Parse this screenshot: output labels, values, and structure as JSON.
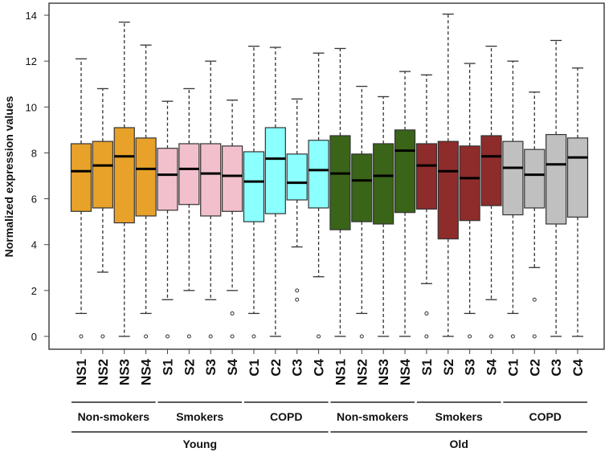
{
  "chart_data": {
    "type": "boxplot",
    "title": "",
    "xlabel": "",
    "ylabel": "Normalized expression values",
    "ylim": [
      -0.6,
      14.6
    ],
    "yticks": [
      0,
      2,
      4,
      6,
      8,
      10,
      12,
      14
    ],
    "grid": false,
    "colors": {
      "young_nonsmokers": "#E8A22A",
      "young_smokers": "#F2C0CC",
      "young_copd": "#8CFFFF",
      "old_nonsmokers": "#3A6418",
      "old_smokers": "#8E2B2B",
      "old_copd": "#C0C0C0"
    },
    "boxes": [
      {
        "label": "NS1",
        "color": "young_nonsmokers",
        "whislo": 1.0,
        "q1": 5.45,
        "med": 7.2,
        "q3": 8.4,
        "whishi": 12.1,
        "outliers": [
          0
        ]
      },
      {
        "label": "NS2",
        "color": "young_nonsmokers",
        "whislo": 2.8,
        "q1": 5.6,
        "med": 7.45,
        "q3": 8.5,
        "whishi": 10.8,
        "outliers": [
          0
        ]
      },
      {
        "label": "NS3",
        "color": "young_nonsmokers",
        "whislo": 0,
        "q1": 4.95,
        "med": 7.85,
        "q3": 9.1,
        "whishi": 13.7,
        "outliers": []
      },
      {
        "label": "NS4",
        "color": "young_nonsmokers",
        "whislo": 1.0,
        "q1": 5.25,
        "med": 7.3,
        "q3": 8.65,
        "whishi": 12.7,
        "outliers": [
          0
        ]
      },
      {
        "label": "S1",
        "color": "young_smokers",
        "whislo": 1.6,
        "q1": 5.5,
        "med": 7.05,
        "q3": 8.2,
        "whishi": 10.25,
        "outliers": [
          0
        ]
      },
      {
        "label": "S2",
        "color": "young_smokers",
        "whislo": 2.0,
        "q1": 5.75,
        "med": 7.3,
        "q3": 8.4,
        "whishi": 10.8,
        "outliers": [
          0
        ]
      },
      {
        "label": "S3",
        "color": "young_smokers",
        "whislo": 1.6,
        "q1": 5.25,
        "med": 7.1,
        "q3": 8.4,
        "whishi": 12.0,
        "outliers": [
          0
        ]
      },
      {
        "label": "S4",
        "color": "young_smokers",
        "whislo": 2.0,
        "q1": 5.45,
        "med": 7.0,
        "q3": 8.3,
        "whishi": 10.3,
        "outliers": [
          1.0,
          0
        ]
      },
      {
        "label": "C1",
        "color": "young_copd",
        "whislo": 1.0,
        "q1": 5.0,
        "med": 6.75,
        "q3": 8.05,
        "whishi": 12.65,
        "outliers": [
          0
        ]
      },
      {
        "label": "C2",
        "color": "young_copd",
        "whislo": 0,
        "q1": 5.35,
        "med": 7.75,
        "q3": 9.1,
        "whishi": 12.6,
        "outliers": []
      },
      {
        "label": "C3",
        "color": "young_copd",
        "whislo": 3.9,
        "q1": 5.95,
        "med": 6.7,
        "q3": 7.95,
        "whishi": 10.35,
        "outliers": [
          2.0,
          1.6
        ]
      },
      {
        "label": "C4",
        "color": "young_copd",
        "whislo": 2.6,
        "q1": 5.6,
        "med": 7.25,
        "q3": 8.55,
        "whishi": 12.35,
        "outliers": [
          0
        ]
      },
      {
        "label": "NS1",
        "color": "old_nonsmokers",
        "whislo": 0,
        "q1": 4.65,
        "med": 7.1,
        "q3": 8.75,
        "whishi": 12.55,
        "outliers": []
      },
      {
        "label": "NS2",
        "color": "old_nonsmokers",
        "whislo": 1.0,
        "q1": 5.0,
        "med": 6.8,
        "q3": 7.95,
        "whishi": 10.9,
        "outliers": [
          0
        ]
      },
      {
        "label": "NS3",
        "color": "old_nonsmokers",
        "whislo": 0,
        "q1": 4.9,
        "med": 7.0,
        "q3": 8.4,
        "whishi": 10.45,
        "outliers": []
      },
      {
        "label": "NS4",
        "color": "old_nonsmokers",
        "whislo": 0,
        "q1": 5.4,
        "med": 8.1,
        "q3": 9.0,
        "whishi": 11.55,
        "outliers": []
      },
      {
        "label": "S1",
        "color": "old_smokers",
        "whislo": 2.3,
        "q1": 5.55,
        "med": 7.45,
        "q3": 8.4,
        "whishi": 11.4,
        "outliers": [
          1.0,
          0
        ]
      },
      {
        "label": "S2",
        "color": "old_smokers",
        "whislo": 0,
        "q1": 4.25,
        "med": 7.2,
        "q3": 8.5,
        "whishi": 14.05,
        "outliers": []
      },
      {
        "label": "S3",
        "color": "old_smokers",
        "whislo": 1.0,
        "q1": 5.05,
        "med": 6.9,
        "q3": 8.3,
        "whishi": 11.9,
        "outliers": [
          0
        ]
      },
      {
        "label": "S4",
        "color": "old_smokers",
        "whislo": 1.6,
        "q1": 5.7,
        "med": 7.85,
        "q3": 8.75,
        "whishi": 12.65,
        "outliers": [
          0
        ]
      },
      {
        "label": "C1",
        "color": "old_copd",
        "whislo": 1.0,
        "q1": 5.3,
        "med": 7.35,
        "q3": 8.5,
        "whishi": 12.0,
        "outliers": [
          0
        ]
      },
      {
        "label": "C2",
        "color": "old_copd",
        "whislo": 3.0,
        "q1": 5.6,
        "med": 7.05,
        "q3": 8.15,
        "whishi": 10.65,
        "outliers": [
          1.6,
          0
        ]
      },
      {
        "label": "C3",
        "color": "old_copd",
        "whislo": 0,
        "q1": 4.9,
        "med": 7.5,
        "q3": 8.8,
        "whishi": 12.9,
        "outliers": []
      },
      {
        "label": "C4",
        "color": "old_copd",
        "whislo": 0,
        "q1": 5.2,
        "med": 7.8,
        "q3": 8.65,
        "whishi": 11.7,
        "outliers": []
      }
    ],
    "groups": [
      {
        "label": "Non-smokers",
        "from": 0,
        "to": 3
      },
      {
        "label": "Smokers",
        "from": 4,
        "to": 7
      },
      {
        "label": "COPD",
        "from": 8,
        "to": 11
      },
      {
        "label": "Non-smokers",
        "from": 12,
        "to": 15
      },
      {
        "label": "Smokers",
        "from": 16,
        "to": 19
      },
      {
        "label": "COPD",
        "from": 20,
        "to": 23
      }
    ],
    "supergroups": [
      {
        "label": "Young",
        "from": 0,
        "to": 11
      },
      {
        "label": "Old",
        "from": 12,
        "to": 23
      }
    ]
  }
}
